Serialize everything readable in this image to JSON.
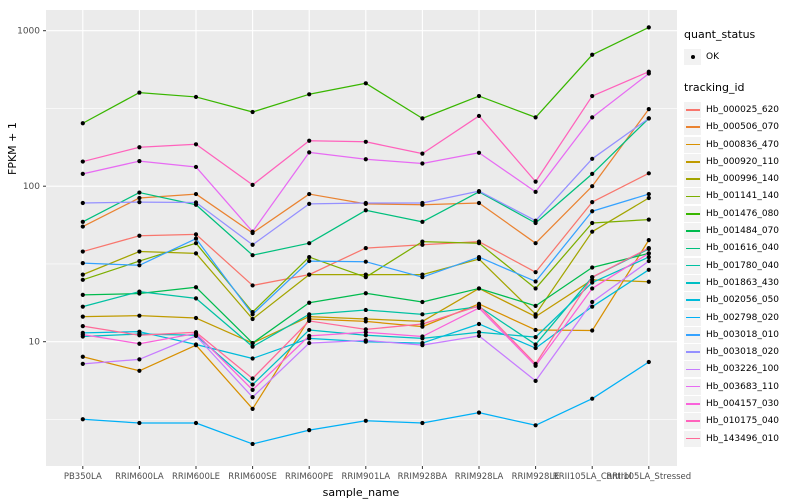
{
  "figure": {
    "legend": {
      "quant_status_title": "quant_status",
      "ok_label": "OK",
      "tracking_title": "tracking_id"
    }
  },
  "chart_data": {
    "type": "line",
    "title": "",
    "xlabel": "sample_name",
    "ylabel": "FPKM + 1",
    "y_scale": "log10",
    "y_ticks": [
      10,
      100,
      1000
    ],
    "y_minor_ticks": [
      3.162,
      31.62,
      316.2
    ],
    "ylim": [
      1.6,
      1360
    ],
    "grid": true,
    "legend_position": "right",
    "point_color": "#000000",
    "panel_bg": "#EBEBEB",
    "categories": [
      "PB350LA",
      "RRIM600LA",
      "RRIM600LE",
      "RRIM600SE",
      "RRIM600PE",
      "RRIM901LA",
      "RRIM928BA",
      "RRIM928LA",
      "RRIM928LE",
      "RRII105LA_Control",
      "RRII105LA_Stressed"
    ],
    "series": [
      {
        "name": "Hb_000025_620",
        "color": "#F8766D",
        "values": [
          38,
          48,
          49,
          23,
          27,
          40,
          42,
          44,
          28,
          79,
          121
        ]
      },
      {
        "name": "Hb_000506_070",
        "color": "#EA8331",
        "values": [
          55,
          84,
          89,
          50,
          89,
          77,
          76,
          78,
          43,
          100,
          313
        ]
      },
      {
        "name": "Hb_000836_470",
        "color": "#D89000",
        "values": [
          8.0,
          6.5,
          9.5,
          3.7,
          14,
          13.5,
          12.5,
          17.5,
          11.9,
          11.8,
          45
        ]
      },
      {
        "name": "Hb_000920_110",
        "color": "#C09B00",
        "values": [
          14.5,
          14.7,
          14.2,
          9.8,
          14.5,
          14,
          13.5,
          22,
          14.5,
          25,
          24.3
        ]
      },
      {
        "name": "Hb_000996_140",
        "color": "#A3A500",
        "values": [
          27,
          38,
          37,
          14,
          27,
          27,
          27,
          34,
          15,
          51,
          84
        ]
      },
      {
        "name": "Hb_001141_140",
        "color": "#7CAE00",
        "values": [
          25,
          33,
          43,
          15.5,
          35,
          26,
          44,
          43,
          22,
          58,
          61
        ]
      },
      {
        "name": "Hb_001476_080",
        "color": "#39B600",
        "values": [
          254,
          400,
          375,
          300,
          390,
          459,
          273,
          380,
          277,
          700,
          1050
        ]
      },
      {
        "name": "Hb_001484_070",
        "color": "#00BB4E",
        "values": [
          20,
          20.4,
          22.4,
          9.8,
          17.8,
          20.5,
          18,
          22,
          17,
          30,
          37
        ]
      },
      {
        "name": "Hb_001616_040",
        "color": "#00BF7D",
        "values": [
          59,
          91,
          76,
          36,
          43,
          70,
          59,
          92,
          58,
          120,
          273
        ]
      },
      {
        "name": "Hb_001780_040",
        "color": "#00C1A3",
        "values": [
          16.8,
          21,
          19,
          9.3,
          15,
          16,
          15,
          16.8,
          9.6,
          26,
          39.5
        ]
      },
      {
        "name": "Hb_001863_430",
        "color": "#00BFC4",
        "values": [
          10.8,
          11.2,
          11.0,
          5.3,
          11.9,
          11,
          10.5,
          11.5,
          10.7,
          24,
          35
        ]
      },
      {
        "name": "Hb_002056_050",
        "color": "#00BBDA",
        "values": [
          11.4,
          11.6,
          9.6,
          7.8,
          10.5,
          10,
          9.8,
          13,
          9.1,
          16.8,
          29
        ]
      },
      {
        "name": "Hb_002798_020",
        "color": "#00B0F6",
        "values": [
          3.17,
          3.0,
          3.0,
          2.2,
          2.7,
          3.1,
          3.0,
          3.5,
          2.9,
          4.3,
          7.4
        ]
      },
      {
        "name": "Hb_003018_010",
        "color": "#35A2FF",
        "values": [
          32,
          31,
          46,
          15,
          33,
          32.7,
          26,
          35,
          24.4,
          69,
          89
        ]
      },
      {
        "name": "Hb_003018_020",
        "color": "#9590FF",
        "values": [
          78,
          79,
          78.6,
          42,
          77,
          78,
          78,
          93,
          60,
          150,
          273
        ]
      },
      {
        "name": "Hb_003226_100",
        "color": "#C77CFF",
        "values": [
          7.2,
          7.7,
          10.9,
          4.4,
          9.8,
          10.2,
          9.5,
          10.9,
          5.6,
          18,
          33
        ]
      },
      {
        "name": "Hb_003683_110",
        "color": "#E76BF3",
        "values": [
          120,
          145,
          133,
          51,
          165,
          149,
          140,
          164,
          92,
          277,
          530
        ]
      },
      {
        "name": "Hb_004157_030",
        "color": "#FA62DB",
        "values": [
          11.1,
          9.7,
          11.3,
          4.9,
          10.9,
          11.5,
          10.8,
          16.5,
          7.0,
          22,
          37
        ]
      },
      {
        "name": "Hb_010175_040",
        "color": "#FF62BC",
        "values": [
          144,
          178,
          186,
          102,
          196,
          193,
          162,
          283,
          107,
          380,
          545
        ]
      },
      {
        "name": "Hb_143496_010",
        "color": "#FF6A98",
        "values": [
          12.6,
          11.0,
          11.5,
          5.8,
          13.6,
          12,
          13,
          17,
          7.2,
          26,
          40
        ]
      }
    ]
  }
}
